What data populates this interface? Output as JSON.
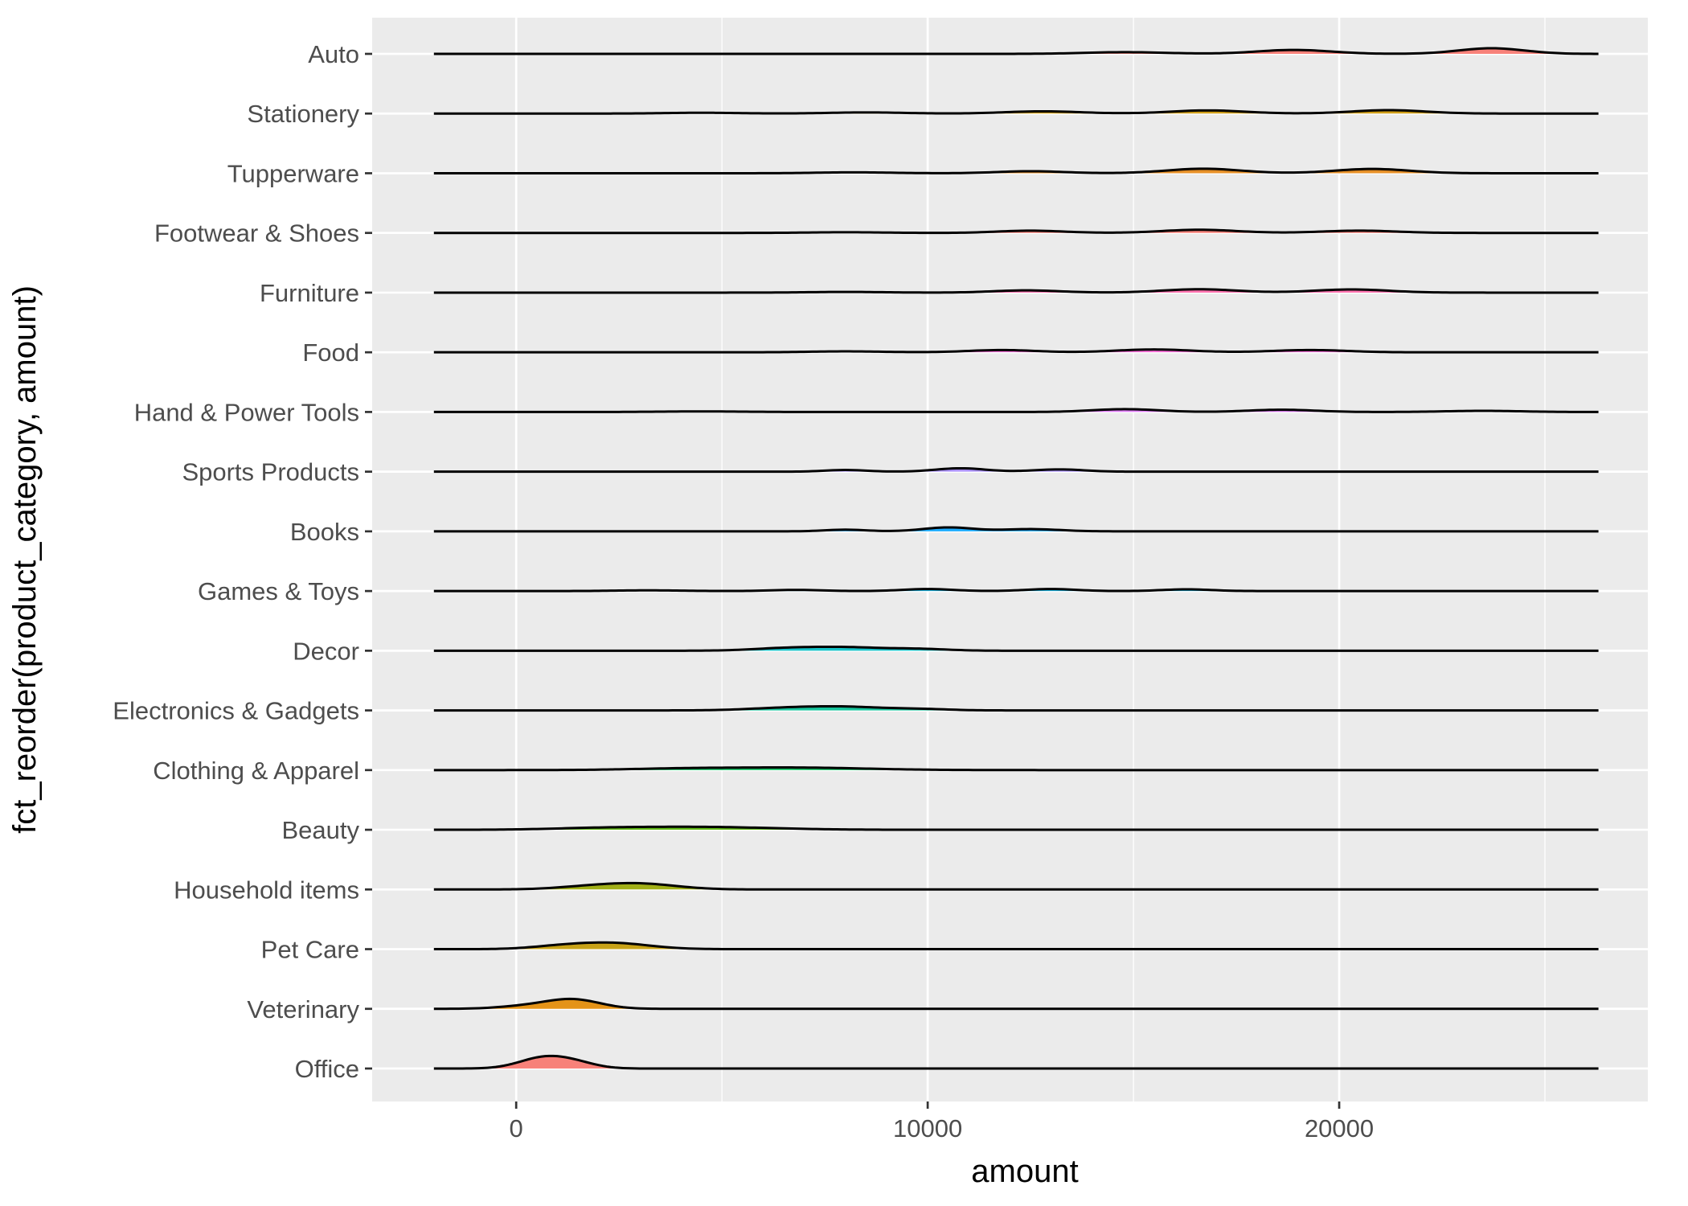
{
  "chart_data": {
    "type": "ridgeline",
    "xlabel": "amount",
    "ylabel": "fct_reorder(product_category, amount)",
    "xlim": [
      -3500,
      27500
    ],
    "x_ticks": [
      0,
      10000,
      20000
    ],
    "x_tick_labels": [
      "0",
      "10000",
      "20000"
    ],
    "x_minor_ticks": [
      5000,
      15000,
      25000
    ],
    "density_range": [
      -2000,
      26300
    ],
    "grid": true,
    "legend": "none",
    "colors": {
      "panel": "#EBEBEB",
      "grid": "#FFFFFF",
      "line": "#000000",
      "tick_text": "#4D4D4D"
    },
    "categories": [
      "Office",
      "Veterinary",
      "Pet Care",
      "Household items",
      "Beauty",
      "Clothing & Apparel",
      "Electronics & Gadgets",
      "Decor",
      "Games & Toys",
      "Books",
      "Sports Products",
      "Hand & Power Tools",
      "Food",
      "Furniture",
      "Footwear & Shoes",
      "Tupperware",
      "Stationery",
      "Auto"
    ],
    "series": [
      {
        "category": "Office",
        "fill": "#F8766D",
        "peaks": [
          [
            700,
            600,
            1.0
          ],
          [
            1500,
            500,
            0.35
          ]
        ]
      },
      {
        "category": "Veterinary",
        "fill": "#E38900",
        "peaks": [
          [
            1400,
            650,
            0.8
          ],
          [
            300,
            700,
            0.25
          ]
        ]
      },
      {
        "category": "Pet Care",
        "fill": "#C49A00",
        "peaks": [
          [
            2300,
            900,
            0.55
          ],
          [
            1000,
            700,
            0.2
          ]
        ]
      },
      {
        "category": "Household items",
        "fill": "#99A800",
        "peaks": [
          [
            3000,
            900,
            0.5
          ],
          [
            1700,
            800,
            0.2
          ]
        ]
      },
      {
        "category": "Beauty",
        "fill": "#53B400",
        "peaks": [
          [
            4500,
            1700,
            0.25
          ],
          [
            2000,
            1200,
            0.12
          ]
        ]
      },
      {
        "category": "Clothing & Apparel",
        "fill": "#00BC56",
        "peaks": [
          [
            6800,
            1700,
            0.22
          ],
          [
            4000,
            1300,
            0.12
          ]
        ]
      },
      {
        "category": "Electronics & Gadgets",
        "fill": "#00C094",
        "peaks": [
          [
            8000,
            900,
            0.3
          ],
          [
            6500,
            900,
            0.2
          ],
          [
            9800,
            700,
            0.12
          ]
        ]
      },
      {
        "category": "Decor",
        "fill": "#00BFC4",
        "peaks": [
          [
            8000,
            900,
            0.3
          ],
          [
            6500,
            800,
            0.2
          ],
          [
            9800,
            700,
            0.15
          ]
        ]
      },
      {
        "category": "Games & Toys",
        "fill": "#00B6EB",
        "peaks": [
          [
            10000,
            600,
            0.18
          ],
          [
            13000,
            600,
            0.18
          ],
          [
            16300,
            600,
            0.15
          ],
          [
            6800,
            600,
            0.1
          ],
          [
            3200,
            800,
            0.06
          ]
        ]
      },
      {
        "category": "Books",
        "fill": "#06A4FF",
        "peaks": [
          [
            10500,
            600,
            0.35
          ],
          [
            12500,
            700,
            0.2
          ],
          [
            8000,
            500,
            0.15
          ]
        ]
      },
      {
        "category": "Sports Products",
        "fill": "#A58AFF",
        "peaks": [
          [
            10800,
            600,
            0.3
          ],
          [
            13200,
            600,
            0.2
          ],
          [
            8000,
            500,
            0.15
          ]
        ]
      },
      {
        "category": "Hand & Power Tools",
        "fill": "#DF70F8",
        "peaks": [
          [
            14800,
            800,
            0.25
          ],
          [
            18600,
            800,
            0.2
          ],
          [
            23500,
            900,
            0.1
          ],
          [
            4500,
            1000,
            0.05
          ]
        ]
      },
      {
        "category": "Food",
        "fill": "#FB61D7",
        "peaks": [
          [
            11800,
            800,
            0.2
          ],
          [
            15500,
            900,
            0.25
          ],
          [
            19300,
            900,
            0.2
          ],
          [
            8000,
            900,
            0.08
          ]
        ]
      },
      {
        "category": "Furniture",
        "fill": "#FF66A8",
        "peaks": [
          [
            12400,
            800,
            0.2
          ],
          [
            16600,
            900,
            0.3
          ],
          [
            20300,
            900,
            0.28
          ],
          [
            8000,
            900,
            0.06
          ]
        ]
      },
      {
        "category": "Footwear & Shoes",
        "fill": "#F8766D",
        "peaks": [
          [
            12500,
            800,
            0.2
          ],
          [
            16600,
            900,
            0.28
          ],
          [
            20500,
            900,
            0.2
          ],
          [
            8000,
            900,
            0.06
          ]
        ]
      },
      {
        "category": "Tupperware",
        "fill": "#E68613",
        "peaks": [
          [
            12500,
            800,
            0.18
          ],
          [
            16700,
            900,
            0.4
          ],
          [
            20800,
            900,
            0.38
          ],
          [
            8200,
            900,
            0.08
          ]
        ]
      },
      {
        "category": "Stationery",
        "fill": "#CD9600",
        "peaks": [
          [
            12800,
            900,
            0.2
          ],
          [
            16800,
            900,
            0.28
          ],
          [
            21200,
            900,
            0.3
          ],
          [
            8500,
            900,
            0.1
          ],
          [
            4500,
            900,
            0.07
          ]
        ]
      },
      {
        "category": "Auto",
        "fill": "#F8766D",
        "peaks": [
          [
            14800,
            1000,
            0.15
          ],
          [
            18900,
            900,
            0.35
          ],
          [
            23700,
            800,
            0.5
          ]
        ]
      }
    ]
  }
}
